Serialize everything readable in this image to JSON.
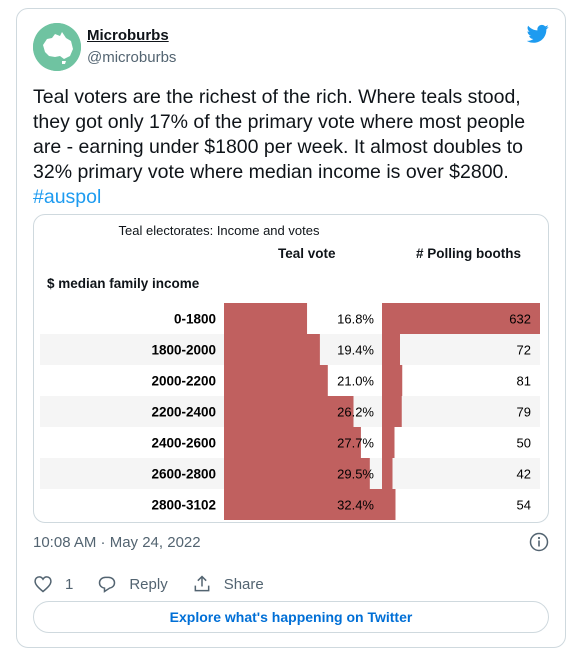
{
  "tweet": {
    "display_name": "Microburbs",
    "handle": "@microburbs",
    "text": "Teal voters are the richest of the rich. Where teals stood, they got only 17% of the primary vote where most people are - earning under $1800 per week. It almost doubles to 32% primary vote where median income is over $2800. ",
    "hashtag": "#auspol",
    "timestamp": "10:08 AM · May 24, 2022"
  },
  "actions": {
    "likes_count": "1",
    "reply_label": "Reply",
    "share_label": "Share"
  },
  "explore_label": "Explore what's happening on Twitter",
  "colors": {
    "bar": "#c0605f",
    "stripe": "#f5f5f5",
    "link": "#1d9bf0",
    "button_text": "#006fd6",
    "avatar": "#6fc3a1"
  },
  "chart_data": {
    "type": "table",
    "title": "Teal electorates: Income and votes",
    "row_header": "$ median family income",
    "columns": [
      "Teal vote",
      "# Polling booths"
    ],
    "categories": [
      "0-1800",
      "1800-2000",
      "2000-2200",
      "2200-2400",
      "2400-2600",
      "2600-2800",
      "2800-3102"
    ],
    "series": [
      {
        "name": "Teal vote",
        "values": [
          16.8,
          19.4,
          21.0,
          26.2,
          27.7,
          29.5,
          32.4
        ],
        "labels": [
          "16.8%",
          "19.4%",
          "21.0%",
          "26.2%",
          "27.7%",
          "29.5%",
          "32.4%"
        ]
      },
      {
        "name": "# Polling booths",
        "values": [
          632,
          72,
          81,
          79,
          50,
          42,
          54
        ],
        "labels": [
          "632",
          "72",
          "81",
          "79",
          "50",
          "42",
          "54"
        ]
      }
    ]
  }
}
